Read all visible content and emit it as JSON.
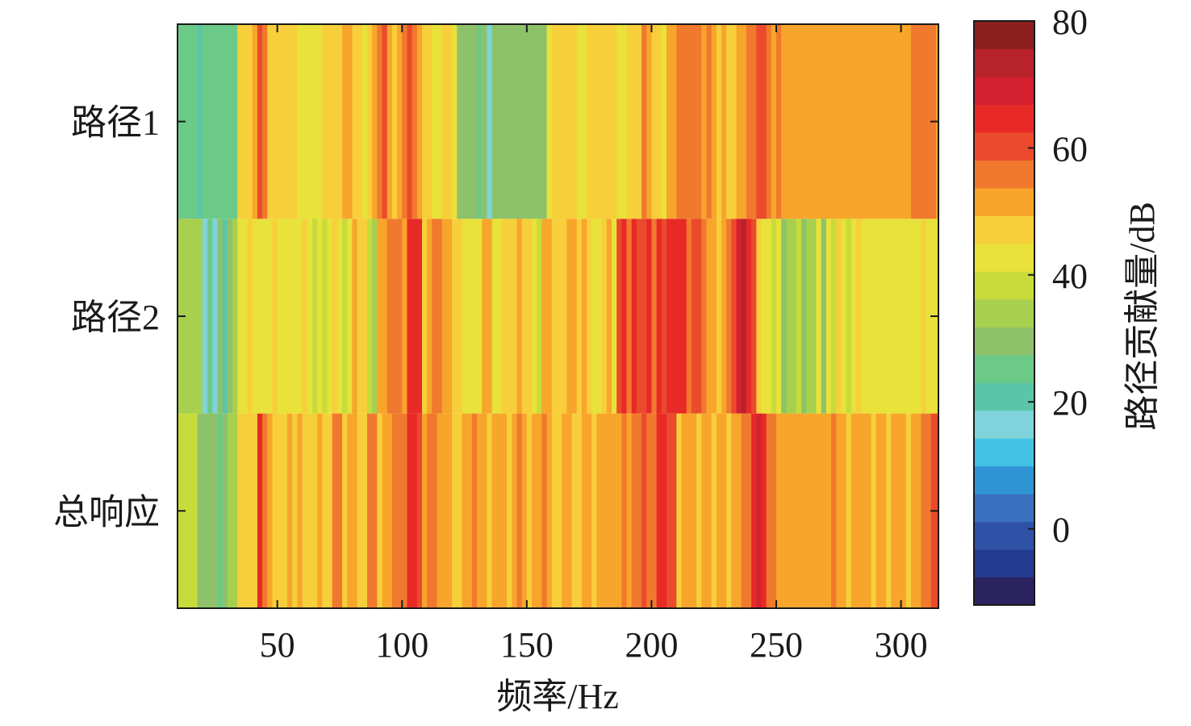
{
  "chart_data": {
    "type": "heatmap",
    "title": "",
    "xlabel": "频率/Hz",
    "colorbar_label": "路径贡献量/dB",
    "rows": [
      "路径1",
      "路径2",
      "总响应"
    ],
    "x_ticks": [
      50,
      100,
      150,
      200,
      250,
      300
    ],
    "xlim": [
      10,
      315
    ],
    "colorbar_ticks": [
      0,
      20,
      40,
      60,
      80
    ],
    "clim": [
      -12,
      80
    ],
    "colormap": [
      "#2b2260",
      "#233b8e",
      "#2f52a6",
      "#3b6fc0",
      "#2f94d4",
      "#43c2e6",
      "#7ed4da",
      "#5ac6a7",
      "#6cca88",
      "#8ec26a",
      "#a6d04e",
      "#c7dc3a",
      "#e8e23a",
      "#f7cf3a",
      "#f8a52b",
      "#f0792e",
      "#eb4a2c",
      "#e82a26",
      "#d4202f",
      "#b8232b",
      "#8d1f1f"
    ],
    "bins_start_hz": 10,
    "bin_width_hz": 2,
    "row_values": {
      "路径1": [
        24,
        24,
        24,
        24,
        20,
        24,
        24,
        24,
        24,
        24,
        24,
        24,
        46,
        47,
        48,
        52,
        62,
        55,
        48,
        47,
        46,
        46,
        46,
        45,
        44,
        44,
        42,
        43,
        44,
        46,
        47,
        48,
        46,
        50,
        52,
        48,
        46,
        44,
        47,
        50,
        56,
        60,
        50,
        48,
        52,
        58,
        60,
        54,
        50,
        46,
        47,
        43,
        44,
        45,
        45,
        44,
        28,
        28,
        28,
        28,
        26,
        28,
        16,
        30,
        30,
        30,
        30,
        30,
        30,
        30,
        28,
        30,
        28,
        30,
        44,
        47,
        46,
        45,
        46,
        45,
        44,
        44,
        46,
        47,
        46,
        46,
        47,
        48,
        44,
        42,
        47,
        46,
        48,
        56,
        52,
        48,
        46,
        44,
        50,
        52,
        56,
        54,
        57,
        56,
        58,
        50,
        56,
        50,
        48,
        52,
        48,
        46,
        50,
        52,
        56,
        58,
        62,
        60,
        58,
        53,
        54,
        53,
        53,
        53,
        53,
        53,
        53,
        53,
        53,
        53,
        53,
        53,
        53,
        53,
        53,
        53,
        53,
        50,
        52,
        52,
        50,
        50,
        52,
        52,
        50,
        52,
        52,
        56,
        55,
        56,
        58,
        56,
        52
      ],
      "路径2": [
        35,
        35,
        35,
        35,
        32,
        18,
        26,
        18,
        28,
        20,
        30,
        32,
        44,
        42,
        46,
        43,
        44,
        42,
        44,
        45,
        44,
        42,
        43,
        42,
        44,
        46,
        44,
        40,
        44,
        40,
        42,
        46,
        44,
        40,
        44,
        50,
        48,
        45,
        40,
        32,
        50,
        52,
        55,
        58,
        56,
        52,
        66,
        66,
        66,
        48,
        50,
        54,
        56,
        52,
        50,
        48,
        46,
        44,
        42,
        44,
        43,
        50,
        52,
        42,
        44,
        46,
        48,
        48,
        50,
        47,
        48,
        44,
        40,
        50,
        52,
        48,
        46,
        48,
        50,
        52,
        48,
        50,
        46,
        42,
        44,
        46,
        50,
        44,
        62,
        64,
        58,
        66,
        60,
        62,
        64,
        56,
        66,
        62,
        64,
        64,
        66,
        64,
        58,
        62,
        60,
        56,
        52,
        50,
        48,
        52,
        56,
        62,
        68,
        72,
        66,
        60,
        46,
        44,
        44,
        40,
        42,
        30,
        32,
        34,
        40,
        30,
        32,
        36,
        44,
        30,
        42,
        40,
        46,
        44,
        40,
        44,
        46,
        42,
        44,
        43,
        44,
        44,
        42,
        42,
        44,
        42,
        43,
        41,
        44,
        45,
        43,
        44,
        44
      ],
      "总响应": [
        38,
        38,
        38,
        38,
        30,
        30,
        30,
        30,
        25,
        30,
        34,
        36,
        46,
        45,
        47,
        49,
        64,
        58,
        50,
        47,
        48,
        49,
        50,
        46,
        52,
        48,
        47,
        48,
        50,
        46,
        48,
        54,
        56,
        48,
        50,
        52,
        48,
        46,
        54,
        56,
        48,
        50,
        52,
        56,
        58,
        54,
        66,
        64,
        62,
        52,
        54,
        56,
        52,
        50,
        52,
        48,
        48,
        50,
        52,
        56,
        50,
        52,
        48,
        52,
        50,
        50,
        48,
        52,
        54,
        50,
        48,
        50,
        52,
        54,
        50,
        48,
        46,
        50,
        52,
        48,
        46,
        50,
        52,
        48,
        50,
        52,
        50,
        52,
        50,
        56,
        52,
        54,
        58,
        62,
        54,
        56,
        64,
        66,
        62,
        60,
        48,
        50,
        52,
        50,
        48,
        50,
        52,
        48,
        50,
        52,
        48,
        50,
        50,
        54,
        58,
        64,
        68,
        64,
        55,
        54,
        53,
        53,
        53,
        53,
        53,
        53,
        53,
        53,
        52,
        52,
        50,
        56,
        52,
        50,
        48,
        52,
        50,
        50,
        52,
        48,
        50,
        50,
        48,
        52,
        50,
        52,
        48,
        50,
        52,
        56,
        58,
        60,
        60
      ]
    }
  }
}
